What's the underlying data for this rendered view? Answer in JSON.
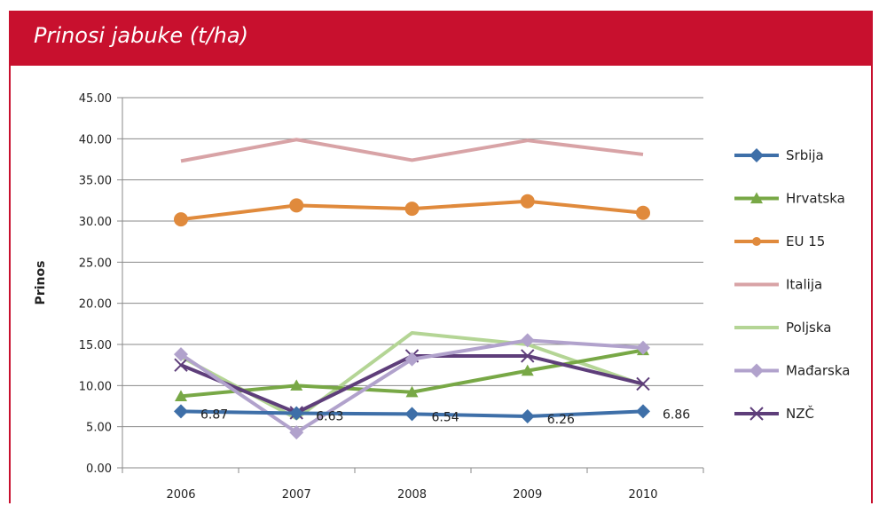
{
  "chart_data": {
    "type": "line",
    "title": "Prinosi jabuke (t/ha)",
    "ylabel": "Prinos",
    "xlabel": "",
    "categories": [
      "2006",
      "2007",
      "2008",
      "2009",
      "2010"
    ],
    "ylim": [
      0,
      45
    ],
    "yticks": [
      "0.00",
      "5.00",
      "10.00",
      "15.00",
      "20.00",
      "25.00",
      "30.00",
      "35.00",
      "40.00",
      "45.00"
    ],
    "grid": "horizontal",
    "legend_position": "right",
    "series": [
      {
        "name": "Srbija",
        "color": "#3e6fa8",
        "marker": "diamond",
        "values": [
          6.87,
          6.63,
          6.54,
          6.26,
          6.86
        ],
        "labels": [
          "6.87",
          "6.63",
          "6.54",
          "6.26",
          "6.86"
        ]
      },
      {
        "name": "Hrvatska",
        "color": "#78a846",
        "marker": "triangle",
        "values": [
          8.7,
          10.0,
          9.2,
          11.8,
          14.3
        ]
      },
      {
        "name": "EU 15",
        "color": "#e08a3c",
        "marker": "circle",
        "values": [
          30.2,
          31.9,
          31.5,
          32.4,
          31.0
        ]
      },
      {
        "name": "Italija",
        "color": "#d8a3a6",
        "marker": "none",
        "values": [
          37.3,
          39.9,
          37.4,
          39.8,
          38.1
        ]
      },
      {
        "name": "Poljska",
        "color": "#b4d595",
        "marker": "none",
        "values": [
          13.5,
          6.0,
          16.4,
          15.0,
          10.1
        ]
      },
      {
        "name": "Mađarska",
        "color": "#b1a2cc",
        "marker": "diamond",
        "values": [
          13.8,
          4.3,
          13.2,
          15.5,
          14.6
        ]
      },
      {
        "name": "NZČ",
        "color": "#5e3e7a",
        "marker": "x",
        "values": [
          12.5,
          6.7,
          13.6,
          13.6,
          10.2
        ]
      }
    ]
  }
}
